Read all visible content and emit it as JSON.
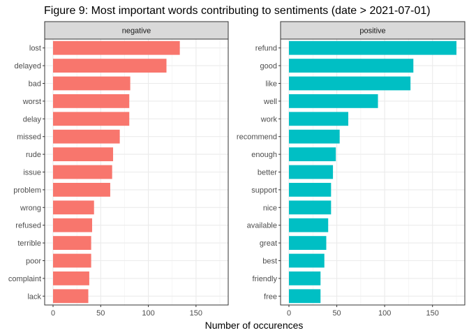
{
  "chart_data": {
    "type": "bar",
    "orientation": "horizontal",
    "title": "Figure 9: Most important words contributing to sentiments (date > 2021-07-01)",
    "xlabel": "Number of occurences",
    "ylabel": "",
    "xlim": [
      0,
      175
    ],
    "xticks": [
      0,
      50,
      100,
      150
    ],
    "grid": true,
    "legend": "none",
    "panels": [
      {
        "name": "negative",
        "color": "#F8766D",
        "categories": [
          "lost",
          "delayed",
          "bad",
          "worst",
          "delay",
          "missed",
          "rude",
          "issue",
          "problem",
          "wrong",
          "refused",
          "terrible",
          "poor",
          "complaint",
          "lack"
        ],
        "values": [
          133,
          119,
          81,
          80,
          80,
          70,
          63,
          62,
          60,
          43,
          41,
          40,
          40,
          38,
          37
        ]
      },
      {
        "name": "positive",
        "color": "#00BFC4",
        "categories": [
          "refund",
          "good",
          "like",
          "well",
          "work",
          "recommend",
          "enough",
          "better",
          "support",
          "nice",
          "available",
          "great",
          "best",
          "friendly",
          "free"
        ],
        "values": [
          175,
          130,
          127,
          93,
          62,
          53,
          49,
          46,
          44,
          44,
          41,
          39,
          37,
          33,
          33
        ]
      }
    ]
  }
}
